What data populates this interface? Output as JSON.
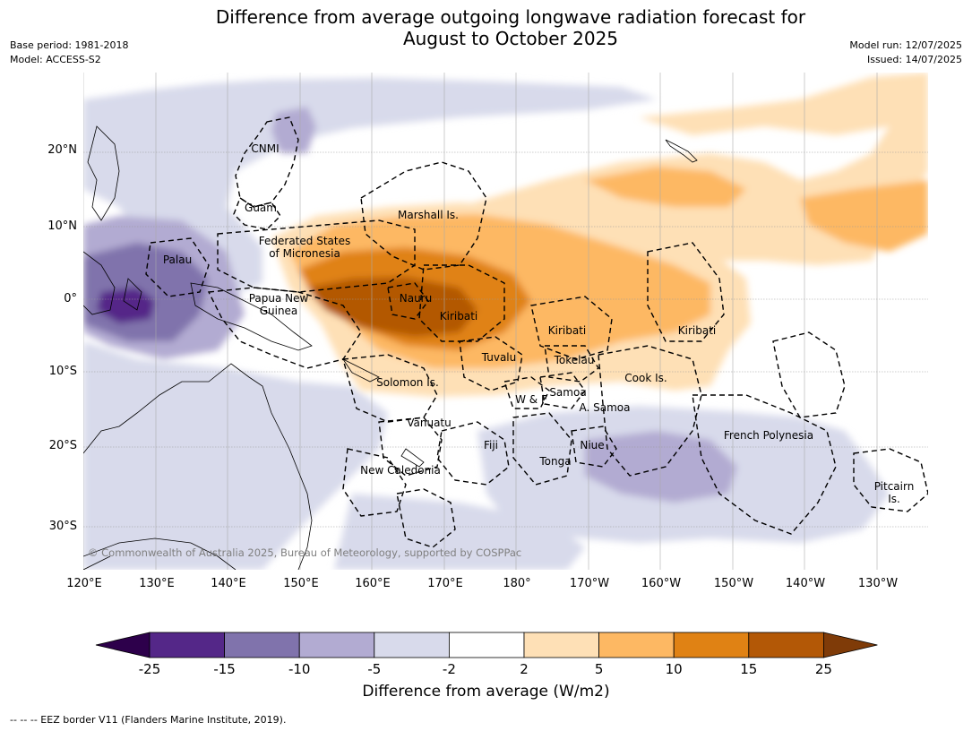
{
  "title_line1": "Difference from average outgoing longwave radiation forecast for",
  "title_line2": "August to October 2025",
  "meta_left": [
    "Base period: 1981-2018",
    "Model: ACCESS-S2"
  ],
  "meta_right": [
    "Model run: 12/07/2025",
    "Issued: 14/07/2025"
  ],
  "lat_ticks": [
    "20°N",
    "10°N",
    "0°",
    "10°S",
    "20°S",
    "30°S"
  ],
  "lon_ticks": [
    "120°E",
    "130°E",
    "140°E",
    "150°E",
    "160°E",
    "170°E",
    "180°",
    "170°W",
    "160°W",
    "150°W",
    "140°W",
    "130°W"
  ],
  "places": [
    {
      "name": "CNMI",
      "lines": [
        "CNMI"
      ]
    },
    {
      "name": "Guam",
      "lines": [
        "Guam"
      ]
    },
    {
      "name": "Marshall Is.",
      "lines": [
        "Marshall Is."
      ]
    },
    {
      "name": "Federated States of Micronesia",
      "lines": [
        "Federated States",
        "of Micronesia"
      ]
    },
    {
      "name": "Palau",
      "lines": [
        "Palau"
      ]
    },
    {
      "name": "Papua New Guinea",
      "lines": [
        "Papua New",
        "Guinea"
      ]
    },
    {
      "name": "Nauru",
      "lines": [
        "Nauru"
      ]
    },
    {
      "name": "Kiribati (Gilbert)",
      "lines": [
        "Kiribati"
      ]
    },
    {
      "name": "Kiribati (Phoenix)",
      "lines": [
        "Kiribati"
      ]
    },
    {
      "name": "Kiribati (Line)",
      "lines": [
        "Kiribati"
      ]
    },
    {
      "name": "Tuvalu",
      "lines": [
        "Tuvalu"
      ]
    },
    {
      "name": "Tokelau",
      "lines": [
        "Tokelau"
      ]
    },
    {
      "name": "Cook Is.",
      "lines": [
        "Cook Is."
      ]
    },
    {
      "name": "Solomon Is.",
      "lines": [
        "Solomon Is."
      ]
    },
    {
      "name": "Samoa",
      "lines": [
        "Samoa"
      ]
    },
    {
      "name": "W & F",
      "lines": [
        "W & F"
      ]
    },
    {
      "name": "A. Samoa",
      "lines": [
        "A. Samoa"
      ]
    },
    {
      "name": "Vanuatu",
      "lines": [
        "Vanuatu"
      ]
    },
    {
      "name": "Fiji",
      "lines": [
        "Fiji"
      ]
    },
    {
      "name": "Niue",
      "lines": [
        "Niue"
      ]
    },
    {
      "name": "Tonga",
      "lines": [
        "Tonga"
      ]
    },
    {
      "name": "French Polynesia",
      "lines": [
        "French Polynesia"
      ]
    },
    {
      "name": "New Caledonia",
      "lines": [
        "New Caledonia"
      ]
    },
    {
      "name": "Pitcairn Is.",
      "lines": [
        "Pitcairn",
        "Is."
      ]
    }
  ],
  "copyright": "© Commonwealth of Australia 2025, Bureau of Meteorology, supported by COSPPac",
  "colorbar": {
    "labels": [
      "-25",
      "-15",
      "-10",
      "-5",
      "-2",
      "2",
      "5",
      "10",
      "15",
      "25"
    ],
    "colors": [
      "#2d004b",
      "#542788",
      "#8073ac",
      "#b2abd2",
      "#d8daeb",
      "#ffffff",
      "#fee0b6",
      "#fdb863",
      "#e08214",
      "#b35806",
      "#7f3b08"
    ],
    "title": "Difference from average (W/m2)"
  },
  "footnote": "--  --  -- EEZ border V11 (Flanders Marine Institute, 2019)."
}
